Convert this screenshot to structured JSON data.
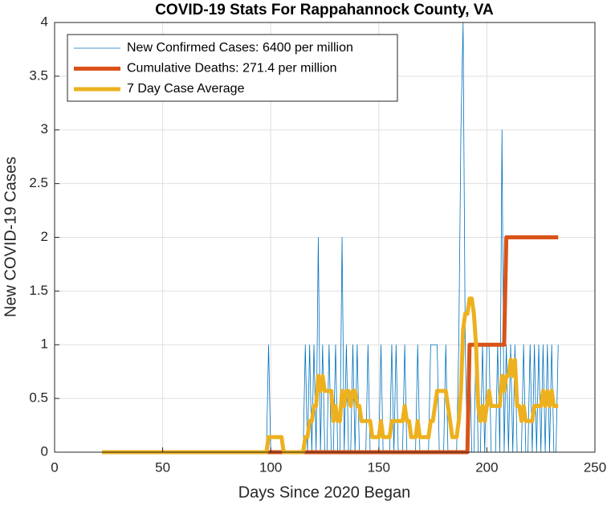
{
  "chart_data": {
    "type": "line",
    "title": "COVID-19 Stats For Rappahannock County, VA",
    "xlabel": "Days Since 2020 Began",
    "ylabel": "New COVID-19 Cases",
    "xlim": [
      0,
      250
    ],
    "xticks": [
      0,
      50,
      100,
      150,
      200,
      250
    ],
    "ylim": [
      0,
      4
    ],
    "yticks": [
      0,
      0.5,
      1,
      1.5,
      2,
      2.5,
      3,
      3.5,
      4
    ],
    "grid": true,
    "legend": "northwest",
    "x": [
      22,
      23,
      24,
      25,
      26,
      27,
      28,
      29,
      30,
      31,
      32,
      33,
      34,
      35,
      36,
      37,
      38,
      39,
      40,
      41,
      42,
      43,
      44,
      45,
      46,
      47,
      48,
      49,
      50,
      51,
      52,
      53,
      54,
      55,
      56,
      57,
      58,
      59,
      60,
      61,
      62,
      63,
      64,
      65,
      66,
      67,
      68,
      69,
      70,
      71,
      72,
      73,
      74,
      75,
      76,
      77,
      78,
      79,
      80,
      81,
      82,
      83,
      84,
      85,
      86,
      87,
      88,
      89,
      90,
      91,
      92,
      93,
      94,
      95,
      96,
      97,
      98,
      99,
      100,
      101,
      102,
      103,
      104,
      105,
      106,
      107,
      108,
      109,
      110,
      111,
      112,
      113,
      114,
      115,
      116,
      117,
      118,
      119,
      120,
      121,
      122,
      123,
      124,
      125,
      126,
      127,
      128,
      129,
      130,
      131,
      132,
      133,
      134,
      135,
      136,
      137,
      138,
      139,
      140,
      141,
      142,
      143,
      144,
      145,
      146,
      147,
      148,
      149,
      150,
      151,
      152,
      153,
      154,
      155,
      156,
      157,
      158,
      159,
      160,
      161,
      162,
      163,
      164,
      165,
      166,
      167,
      168,
      169,
      170,
      171,
      172,
      173,
      174,
      175,
      176,
      177,
      178,
      179,
      180,
      181,
      182,
      183,
      184,
      185,
      186,
      187,
      188,
      189,
      190,
      191,
      192,
      193,
      194,
      195,
      196,
      197,
      198,
      199,
      200,
      201,
      202,
      203,
      204,
      205,
      206,
      207,
      208,
      209,
      210,
      211,
      212,
      213,
      214,
      215,
      216,
      217,
      218,
      219,
      220,
      221,
      222,
      223,
      224,
      225,
      226,
      227,
      228,
      229,
      230,
      231,
      232,
      233
    ],
    "series": [
      {
        "name": "New Confirmed Cases: 6400 per million",
        "color": "#0072BD",
        "width": 0.8,
        "values": [
          0,
          0,
          0,
          0,
          0,
          0,
          0,
          0,
          0,
          0,
          0,
          0,
          0,
          0,
          0,
          0,
          0,
          0,
          0,
          0,
          0,
          0,
          0,
          0,
          0,
          0,
          0,
          0,
          0,
          0,
          0,
          0,
          0,
          0,
          0,
          0,
          0,
          0,
          0,
          0,
          0,
          0,
          0,
          0,
          0,
          0,
          0,
          0,
          0,
          0,
          0,
          0,
          0,
          0,
          0,
          0,
          0,
          0,
          0,
          0,
          0,
          0,
          0,
          0,
          0,
          0,
          0,
          0,
          0,
          0,
          0,
          0,
          0,
          0,
          0,
          0,
          0,
          1,
          0,
          0,
          0,
          0,
          0,
          0,
          0,
          0,
          0,
          0,
          0,
          0,
          0,
          0,
          0,
          0,
          1,
          0,
          1,
          0,
          1,
          0,
          2,
          0,
          1,
          0,
          0,
          1,
          0,
          0,
          1,
          0,
          0,
          2,
          0,
          1,
          0,
          0,
          1,
          0,
          1,
          0,
          0,
          0,
          0,
          1,
          0,
          0,
          0,
          0,
          0,
          1,
          0,
          0,
          0,
          0,
          1,
          0,
          1,
          0,
          0,
          0,
          1,
          0,
          0,
          0,
          0,
          0,
          1,
          0,
          0,
          0,
          0,
          0,
          1,
          1,
          1,
          1,
          0,
          0,
          0,
          1,
          0,
          0,
          0,
          0,
          0,
          1,
          3,
          4,
          1,
          0,
          1,
          0,
          0,
          1,
          0,
          0,
          1,
          0,
          1,
          1,
          0,
          0,
          0,
          1,
          0,
          3,
          0,
          1,
          0,
          1,
          0,
          1,
          0,
          0,
          0,
          1,
          0,
          0,
          1,
          0,
          1,
          0,
          1,
          0,
          1,
          0,
          1,
          0,
          1,
          0,
          0,
          1
        ]
      },
      {
        "name": "Cumulative Deaths: 271.4 per million",
        "color": "#D95319",
        "width": 5,
        "x": [
          22,
          191,
          192,
          208,
          209,
          233
        ],
        "values": [
          0,
          0,
          1,
          1,
          2,
          2
        ]
      },
      {
        "name": "7 Day Case Average",
        "color": "#EDB120",
        "width": 5,
        "values": [
          0,
          0,
          0,
          0,
          0,
          0,
          0,
          0,
          0,
          0,
          0,
          0,
          0,
          0,
          0,
          0,
          0,
          0,
          0,
          0,
          0,
          0,
          0,
          0,
          0,
          0,
          0,
          0,
          0,
          0,
          0,
          0,
          0,
          0,
          0,
          0,
          0,
          0,
          0,
          0,
          0,
          0,
          0,
          0,
          0,
          0,
          0,
          0,
          0,
          0,
          0,
          0,
          0,
          0,
          0,
          0,
          0,
          0,
          0,
          0,
          0,
          0,
          0,
          0,
          0,
          0,
          0,
          0,
          0,
          0,
          0,
          0,
          0,
          0,
          0,
          0,
          0,
          0.14,
          0.14,
          0.14,
          0.14,
          0.14,
          0.14,
          0.14,
          0,
          0,
          0,
          0,
          0,
          0,
          0,
          0,
          0,
          0,
          0.14,
          0.14,
          0.29,
          0.29,
          0.43,
          0.43,
          0.71,
          0.57,
          0.71,
          0.57,
          0.57,
          0.57,
          0.57,
          0.29,
          0.43,
          0.29,
          0.29,
          0.57,
          0.43,
          0.57,
          0.57,
          0.43,
          0.57,
          0.57,
          0.43,
          0.43,
          0.29,
          0.29,
          0.29,
          0.29,
          0.29,
          0.14,
          0.14,
          0.14,
          0.14,
          0.29,
          0.14,
          0.14,
          0.14,
          0.14,
          0.29,
          0.29,
          0.29,
          0.29,
          0.29,
          0.29,
          0.43,
          0.29,
          0.29,
          0.14,
          0.14,
          0.14,
          0.29,
          0.14,
          0.14,
          0.14,
          0.14,
          0.14,
          0.29,
          0.29,
          0.43,
          0.57,
          0.57,
          0.57,
          0.57,
          0.57,
          0.43,
          0.29,
          0.14,
          0.14,
          0.14,
          0.29,
          0.57,
          1.14,
          1.29,
          1.29,
          1.43,
          1.43,
          1.29,
          1,
          0.43,
          0.29,
          0.43,
          0.29,
          0.43,
          0.57,
          0.43,
          0.43,
          0.43,
          0.43,
          0.43,
          0.71,
          0.57,
          0.71,
          0.71,
          0.86,
          0.71,
          0.86,
          0.43,
          0.43,
          0.29,
          0.43,
          0.29,
          0.29,
          0.29,
          0.29,
          0.43,
          0.43,
          0.43,
          0.43,
          0.57,
          0.43,
          0.57,
          0.43,
          0.57,
          0.43,
          0.43,
          0.43
        ]
      }
    ]
  }
}
